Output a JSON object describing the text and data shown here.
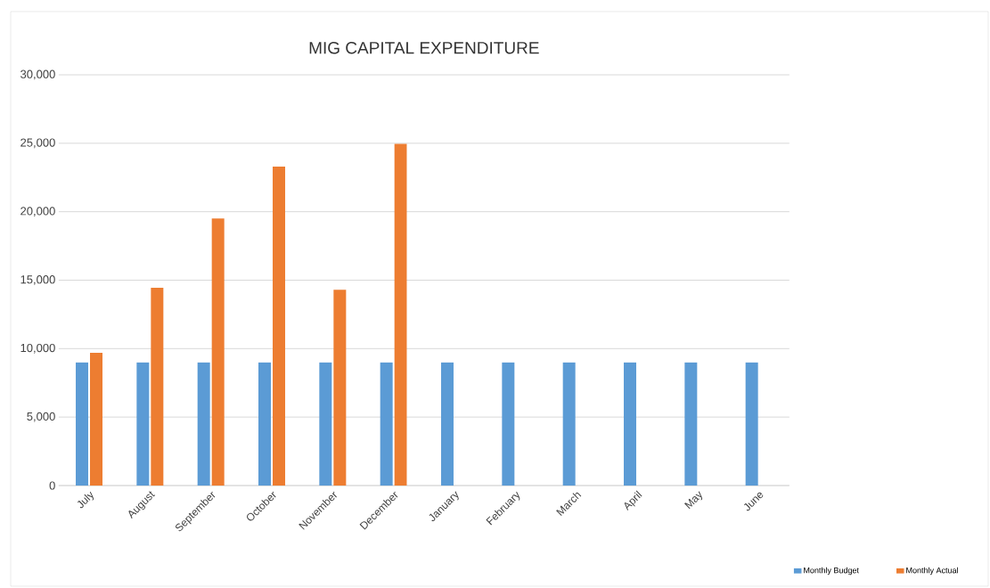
{
  "chart_data": {
    "type": "bar",
    "title": "MIG CAPITAL EXPENDITURE",
    "categories": [
      "July",
      "August",
      "September",
      "October",
      "November",
      "December",
      "January",
      "February",
      "March",
      "April",
      "May",
      "June"
    ],
    "series": [
      {
        "name": "Monthly Budget",
        "color": "#5b9bd5",
        "values": [
          9000,
          9000,
          9000,
          9000,
          9000,
          9000,
          9000,
          9000,
          9000,
          9000,
          9000,
          9000
        ]
      },
      {
        "name": "Monthly Actual",
        "color": "#ed7d31",
        "values": [
          9700,
          14450,
          19500,
          23300,
          14300,
          24950,
          null,
          null,
          null,
          null,
          null,
          null
        ]
      }
    ],
    "ylim": [
      0,
      30000
    ],
    "yticks": [
      {
        "value": 0,
        "label": "0"
      },
      {
        "value": 5000,
        "label": "5,000"
      },
      {
        "value": 10000,
        "label": "10,000"
      },
      {
        "value": 15000,
        "label": "15,000"
      },
      {
        "value": 20000,
        "label": "20,000"
      },
      {
        "value": 25000,
        "label": "25,000"
      },
      {
        "value": 30000,
        "label": "30,000"
      }
    ],
    "grid": "y",
    "legend": "bottom right"
  }
}
